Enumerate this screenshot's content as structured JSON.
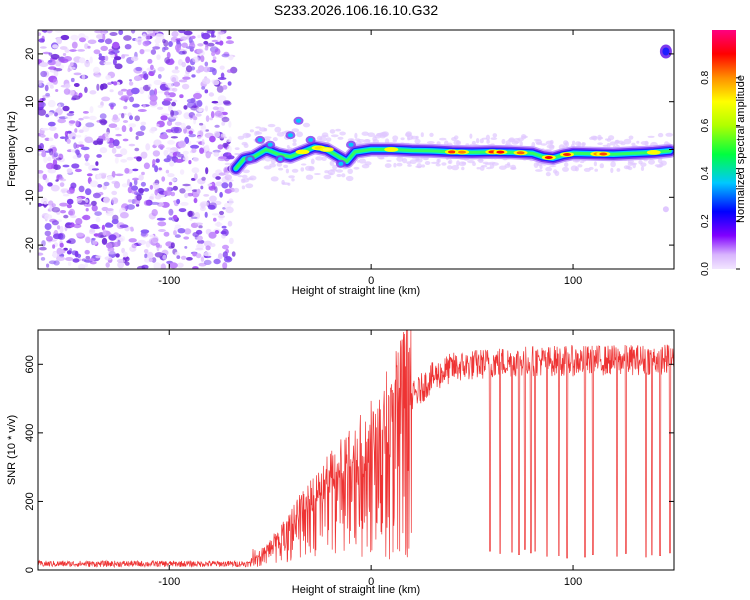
{
  "title": "S233.2026.106.16.10.G32",
  "chart_data": [
    {
      "type": "heatmap",
      "name": "spectrogram",
      "xlabel": "Height of straight line (km)",
      "ylabel": "Frequency (Hz)",
      "xlim": [
        -165,
        150
      ],
      "ylim": [
        -25,
        25
      ],
      "xticks": [
        -100,
        0,
        100
      ],
      "yticks": [
        20,
        10,
        0,
        -10,
        -20
      ],
      "noise_region_x": [
        -165,
        -68
      ],
      "ridge": {
        "x": [
          -67,
          -63,
          -58,
          -52,
          -46,
          -40,
          -34,
          -28,
          -22,
          -16,
          -12,
          -8,
          0,
          10,
          20,
          30,
          40,
          50,
          60,
          70,
          80,
          85,
          90,
          95,
          100,
          110,
          120,
          130,
          140,
          148
        ],
        "y": [
          -4,
          -2,
          -1.5,
          0,
          -1,
          -1.5,
          -0.5,
          0.5,
          0,
          -1.5,
          -2.5,
          -0.5,
          0,
          0,
          -0.2,
          -0.3,
          -0.5,
          -0.6,
          -0.5,
          -0.6,
          -0.8,
          -1.5,
          -1.8,
          -1.2,
          -0.8,
          -0.9,
          -1,
          -0.8,
          -0.6,
          -0.3
        ]
      },
      "colorbar": {
        "label": "Normalized spectral amplitude",
        "range": [
          0,
          1
        ],
        "ticks": [
          "0.0",
          "0.2",
          "0.4",
          "0.6",
          "0.8"
        ],
        "tick_values": [
          0,
          0.2,
          0.4,
          0.6,
          0.8
        ]
      }
    },
    {
      "type": "line",
      "name": "snr",
      "xlabel": "Height of straight line (km)",
      "ylabel": "SNR (10 * v/v)",
      "xlim": [
        -165,
        150
      ],
      "ylim": [
        0,
        700
      ],
      "xticks": [
        -100,
        0,
        100
      ],
      "yticks": [
        0,
        200,
        400,
        600
      ],
      "series": [
        {
          "name": "SNR",
          "color": "#ee3333",
          "envelope_x": [
            -165,
            -60,
            -50,
            -40,
            -30,
            -20,
            -10,
            0,
            10,
            20,
            30,
            40,
            60,
            80,
            100,
            120,
            150
          ],
          "envelope_y": [
            18,
            18,
            60,
            120,
            180,
            230,
            280,
            330,
            420,
            500,
            560,
            590,
            605,
            610,
            610,
            612,
            615
          ],
          "dropouts_x": [
            59,
            64,
            70,
            73,
            76,
            79,
            81,
            87,
            93,
            97,
            106,
            110,
            122,
            126,
            136,
            139,
            143,
            148
          ],
          "dropouts_y": [
            55,
            48,
            52,
            45,
            60,
            50,
            55,
            40,
            42,
            35,
            38,
            45,
            40,
            48,
            38,
            44,
            42,
            50
          ]
        }
      ]
    }
  ]
}
